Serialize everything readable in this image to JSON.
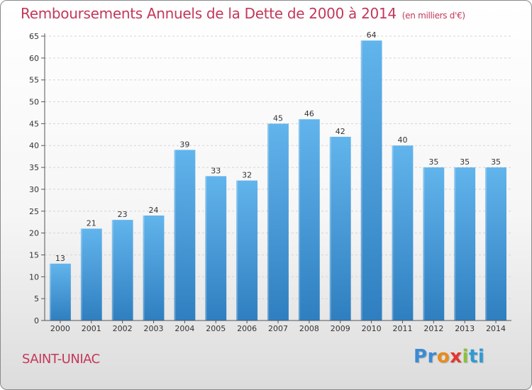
{
  "title": "Remboursements Annuels de la Dette de 2000 à 2014",
  "unit_note": "(en milliers d'€)",
  "town": "SAINT-UNIAC",
  "logo": {
    "p1": "Pr",
    "p2": "o",
    "p3": "x",
    "p4": "i",
    "p5": "ti"
  },
  "colors": {
    "bar_top": "#62b4ec",
    "bar_bottom": "#2f7fc0",
    "title": "#c3385a"
  },
  "chart_data": {
    "type": "bar",
    "title": "Remboursements Annuels de la Dette de 2000 à 2014",
    "xlabel": "",
    "ylabel": "",
    "categories": [
      "2000",
      "2001",
      "2002",
      "2003",
      "2004",
      "2005",
      "2006",
      "2007",
      "2008",
      "2009",
      "2010",
      "2011",
      "2012",
      "2013",
      "2014"
    ],
    "values": [
      13,
      21,
      23,
      24,
      39,
      33,
      32,
      45,
      46,
      42,
      64,
      40,
      35,
      35,
      35
    ],
    "ylim": [
      0,
      65
    ],
    "yticks": [
      0,
      5,
      10,
      15,
      20,
      25,
      30,
      35,
      40,
      45,
      50,
      55,
      60,
      65
    ],
    "grid": true
  }
}
